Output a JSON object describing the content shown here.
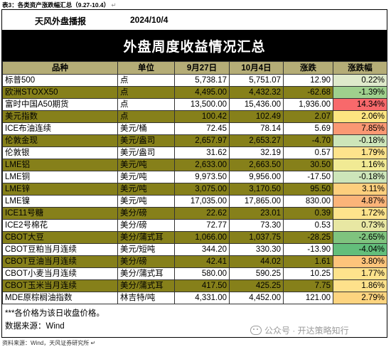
{
  "caption": {
    "title": "表3：各类资产涨跌幅汇总（9.27-10.4）",
    "return_mark": "↵"
  },
  "header": {
    "brand": "天风外盘播报",
    "date": "2024/10/4"
  },
  "banner": "外盘周度收益情况汇总",
  "columns": [
    "品种",
    "单位",
    "9月27日",
    "10月4日",
    "涨跌",
    "涨跌幅"
  ],
  "rows": [
    {
      "name": "标普500",
      "unit": "点",
      "prev": "5,738.17",
      "curr": "5,751.07",
      "chg": "12.90",
      "pct": "0.22%",
      "color": "#dfeacb",
      "hl": false
    },
    {
      "name": "欧洲STOXX50",
      "unit": "点",
      "prev": "4,495.00",
      "curr": "4,432.32",
      "chg": "-62.68",
      "pct": "-1.39%",
      "color": "#9fd08d",
      "hl": true
    },
    {
      "name": "富时中国A50期货",
      "unit": "点",
      "prev": "13,500.00",
      "curr": "15,436.00",
      "chg": "1,936.00",
      "pct": "14.34%",
      "color": "#f8696b",
      "hl": false
    },
    {
      "name": "美元指数",
      "unit": "点",
      "prev": "100.42",
      "curr": "102.49",
      "chg": "2.07",
      "pct": "2.06%",
      "color": "#fde581",
      "hl": true
    },
    {
      "name": "ICE布油连续",
      "unit": "美元/桶",
      "prev": "72.45",
      "curr": "78.14",
      "chg": "5.69",
      "pct": "7.85%",
      "color": "#fa9873",
      "hl": false
    },
    {
      "name": "伦敦金现",
      "unit": "美元/盎司",
      "prev": "2,657.97",
      "curr": "2,653.27",
      "chg": "-4.70",
      "pct": "-0.18%",
      "color": "#cde5b9",
      "hl": true
    },
    {
      "name": "伦敦银",
      "unit": "美元/盎司",
      "prev": "31.62",
      "curr": "32.19",
      "chg": "0.57",
      "pct": "1.79%",
      "color": "#fee38c",
      "hl": false
    },
    {
      "name": "LME铝",
      "unit": "美元/吨",
      "prev": "2,633.00",
      "curr": "2,663.50",
      "chg": "30.50",
      "pct": "1.16%",
      "color": "#f1ea94",
      "hl": true
    },
    {
      "name": "LME铜",
      "unit": "美元/吨",
      "prev": "9,973.50",
      "curr": "9,956.00",
      "chg": "-17.50",
      "pct": "-0.18%",
      "color": "#cde5b9",
      "hl": false
    },
    {
      "name": "LME锌",
      "unit": "美元/吨",
      "prev": "3,075.00",
      "curr": "3,170.50",
      "chg": "95.50",
      "pct": "3.11%",
      "color": "#fdcf7d",
      "hl": true
    },
    {
      "name": "LME镍",
      "unit": "美元/吨",
      "prev": "17,035.00",
      "curr": "17,865.00",
      "chg": "830.00",
      "pct": "4.87%",
      "color": "#fbb479",
      "hl": false
    },
    {
      "name": "ICE11号糖",
      "unit": "美分/磅",
      "prev": "22.62",
      "curr": "23.01",
      "chg": "0.39",
      "pct": "1.72%",
      "color": "#fee38c",
      "hl": true
    },
    {
      "name": "ICE2号棉花",
      "unit": "美分/磅",
      "prev": "72.77",
      "curr": "73.30",
      "chg": "0.53",
      "pct": "0.73%",
      "color": "#e8e7a3",
      "hl": false
    },
    {
      "name": "CBOT大豆",
      "unit": "美分/蒲式耳",
      "prev": "1,066.00",
      "curr": "1,037.75",
      "chg": "-28.25",
      "pct": "-2.65%",
      "color": "#7fc37e",
      "hl": true
    },
    {
      "name": "CBOT豆粕当月连续",
      "unit": "美元/短吨",
      "prev": "344.20",
      "curr": "330.30",
      "chg": "-13.90",
      "pct": "-4.04%",
      "color": "#63be7b",
      "hl": false
    },
    {
      "name": "CBOT豆油当月连续",
      "unit": "美分/磅",
      "prev": "42.41",
      "curr": "44.02",
      "chg": "1.61",
      "pct": "3.80%",
      "color": "#fdc47b",
      "hl": true
    },
    {
      "name": "CBOT小麦当月连续",
      "unit": "美分/蒲式耳",
      "prev": "580.00",
      "curr": "590.25",
      "chg": "10.25",
      "pct": "1.77%",
      "color": "#fee38c",
      "hl": false
    },
    {
      "name": "CBOT玉米当月连续",
      "unit": "美分/蒲式耳",
      "prev": "417.50",
      "curr": "425.25",
      "chg": "7.75",
      "pct": "1.86%",
      "color": "#fee18b",
      "hl": true
    },
    {
      "name": "MDE原棕榈油指数",
      "unit": "林吉特/吨",
      "prev": "4,331.00",
      "curr": "4,452.00",
      "chg": "121.00",
      "pct": "2.79%",
      "color": "#fdd47f",
      "hl": false
    }
  ],
  "footnotes": [
    "***各价格为该日收盘价格。",
    "数据来源：Wind"
  ],
  "source": "资料来源：Wind，天风证券研究所",
  "source_mark": "↵",
  "watermark": "公众号 · 开达策略知行",
  "colors": {
    "highlight": "#86801a",
    "header": "#b5ad77",
    "banner": "#000000"
  }
}
